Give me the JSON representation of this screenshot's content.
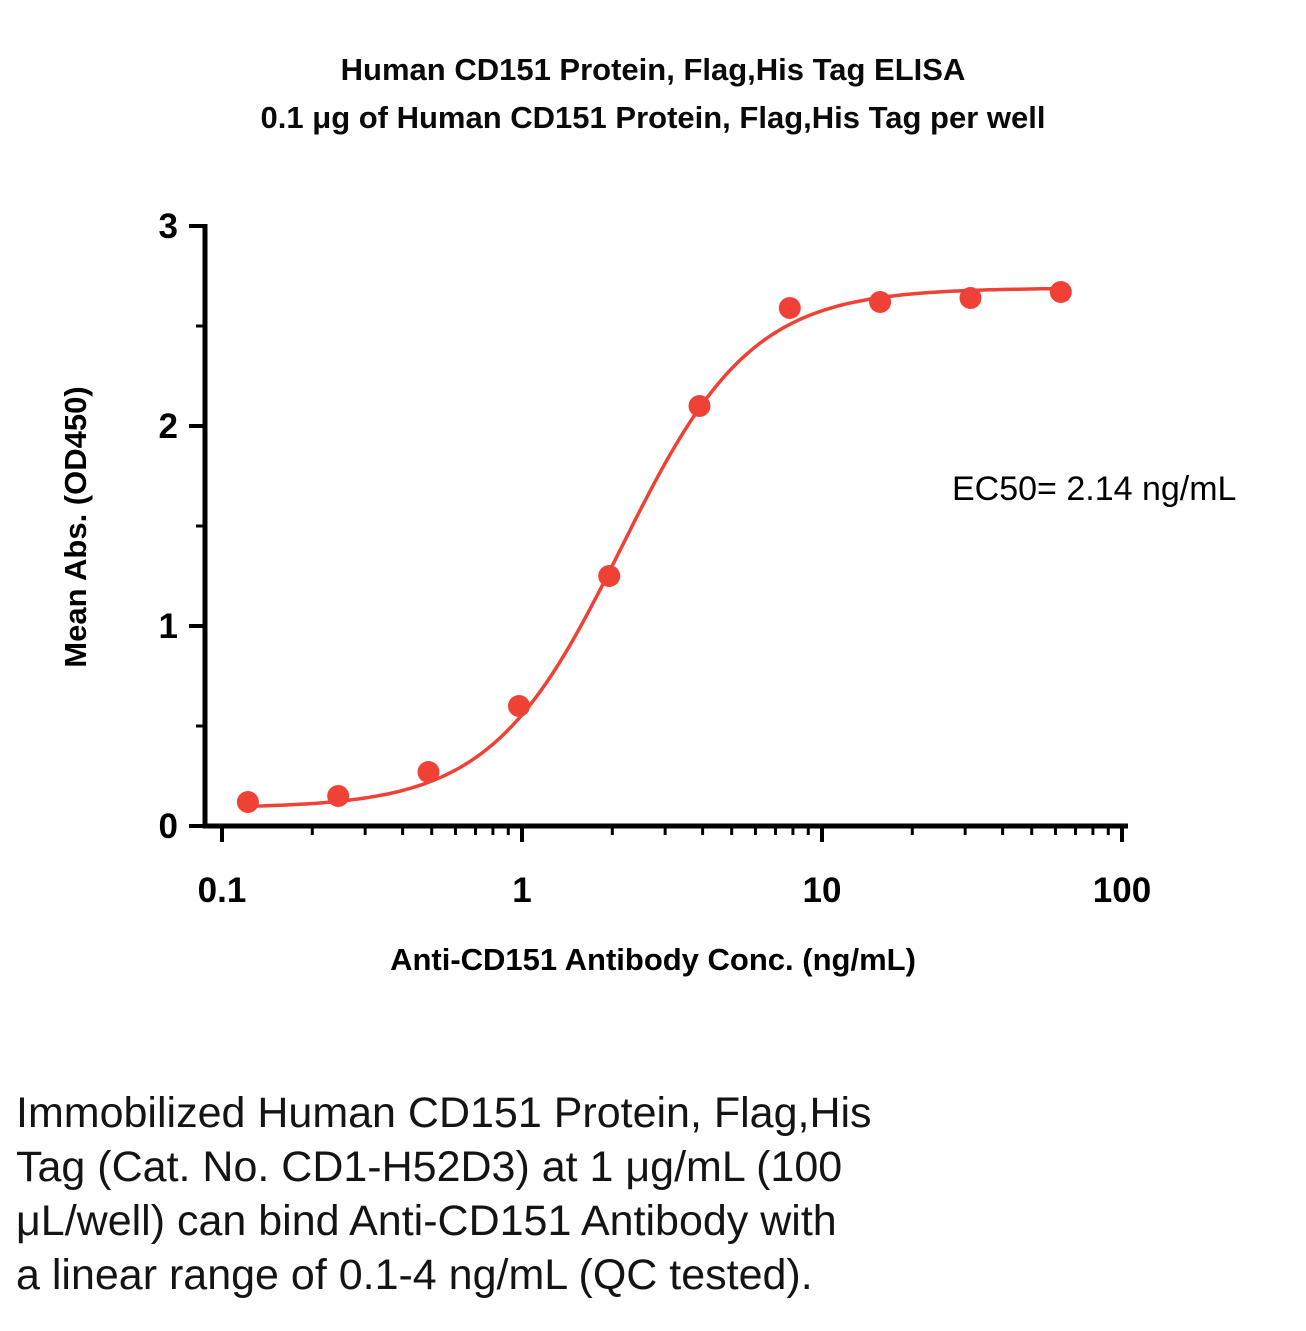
{
  "title": {
    "line1": "Human CD151 Protein, Flag,His Tag ELISA",
    "line2": "0.1 μg of Human CD151 Protein, Flag,His Tag per well"
  },
  "annotation": {
    "ec50_label": "EC50= 2.14 ng/mL"
  },
  "caption_lines": [
    "Immobilized Human CD151 Protein, Flag,His",
    "Tag (Cat. No. CD1-H52D3) at 1 μg/mL (100",
    "μL/well) can bind Anti-CD151 Antibody with",
    "a linear range of 0.1-4 ng/mL (QC tested)."
  ],
  "chart_data": {
    "type": "scatter",
    "title": "Human CD151 Protein, Flag,His Tag ELISA — 0.1 μg of Human CD151 Protein, Flag,His Tag per well",
    "xlabel": "Anti-CD151 Antibody Conc. (ng/mL)",
    "ylabel": "Mean Abs. (OD450)",
    "xscale": "log",
    "xlim": [
      0.1,
      100
    ],
    "ylim": [
      0,
      3
    ],
    "grid": false,
    "legend": "none",
    "x": [
      0.122,
      0.244,
      0.488,
      0.977,
      1.953,
      3.906,
      7.813,
      15.625,
      31.25,
      62.5
    ],
    "y": [
      0.12,
      0.15,
      0.27,
      0.6,
      1.25,
      2.1,
      2.59,
      2.62,
      2.64,
      2.67
    ],
    "xticks": {
      "major": [
        0.1,
        1,
        10,
        100
      ],
      "labels": [
        "0.1",
        "1",
        "10",
        "100"
      ]
    },
    "yticks": {
      "major": [
        0,
        1,
        2,
        3
      ],
      "labels": [
        "0",
        "1",
        "2",
        "3"
      ],
      "minor_step": 0.5
    },
    "fit": {
      "model": "4PL",
      "bottom": 0.09,
      "top": 2.69,
      "ec50": 2.14,
      "hill": 2.0
    },
    "curve_x_range": [
      0.115,
      65
    ],
    "ec50_text": "EC50= 2.14 ng/mL",
    "point_color": "#EF4136",
    "line_color": "#EF4136",
    "axis_color": "#000000"
  }
}
